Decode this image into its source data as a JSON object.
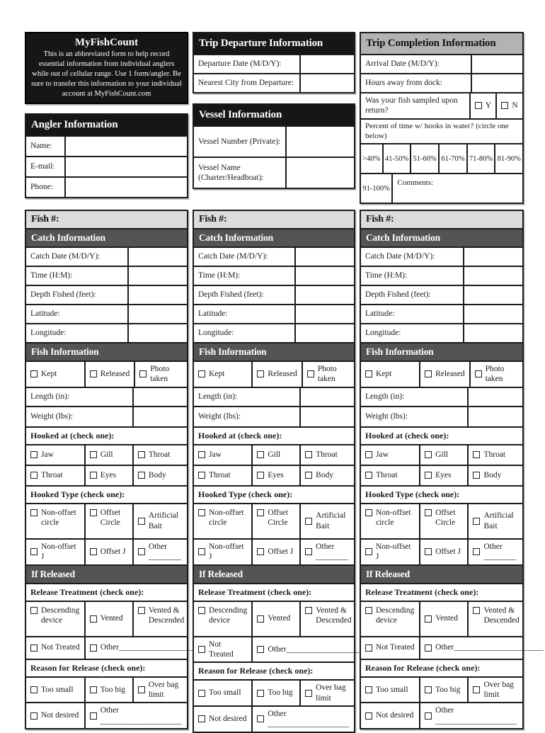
{
  "intro": {
    "title": "MyFishCount",
    "body": "This is an abbreviated form to help record essential information from individual anglers while out of cellular range. Use 1 form/angler. Be sure to transfer this information to your individual account at MyFishCount.com"
  },
  "angler": {
    "title": "Angler Information",
    "rows": [
      "Name:",
      "E-mail:",
      "Phone:"
    ]
  },
  "departure": {
    "title": "Trip Departure Information",
    "rows": [
      "Departure Date (M/D/Y):",
      "Nearest City from Departure:"
    ]
  },
  "vessel": {
    "title": "Vessel Information",
    "rows": [
      "Vessel Number (Private):",
      "Vessel Name (Charter/Headboat):"
    ]
  },
  "completion": {
    "title": "Trip Completion Information",
    "rows": [
      "Arrival Date (M/D/Y):",
      "Hours away from dock:"
    ],
    "sampled_label": "Was your fish sampled upon return?",
    "sampled_options": [
      "Y",
      "N"
    ],
    "percent_label": "Percent of time w/ hooks in water? (circle one below)",
    "percent_options": [
      ">40%",
      "41-50%",
      "51-60%",
      "61-70%",
      "71-80%",
      "81-90%",
      "91-100%"
    ],
    "comments_label": "Comments:"
  },
  "fish": {
    "fish_label": "Fish #:",
    "catch_title": "Catch Information",
    "catch_rows": [
      "Catch Date (M/D/Y):",
      "Time (H:M):",
      "Depth Fished (feet):",
      "Latitude:",
      "Longitude:"
    ],
    "fish_info_title": "Fish Information",
    "status_options": [
      "Kept",
      "Released",
      "Photo taken"
    ],
    "measure_rows": [
      "Length (in):",
      "Weight (lbs):"
    ],
    "hooked_at_title": "Hooked at (check one):",
    "hooked_at_rows": [
      [
        "Jaw",
        "Gill",
        "Throat"
      ],
      [
        "Throat",
        "Eyes",
        "Body"
      ]
    ],
    "hooked_type_title": "Hooked Type (check one):",
    "hooked_type_rows": [
      [
        "Non-offset circle",
        "Offset Circle",
        "Artificial Bait"
      ],
      [
        "Non-offset J",
        "Offset J",
        "Other ________"
      ]
    ],
    "released_title": "If Released",
    "treatment_title": "Release Treatment (check one):",
    "treatment_rows": [
      [
        "Descending device",
        "Vented",
        "Vented & Descended"
      ],
      [
        "Not Treated",
        "Other______________________"
      ]
    ],
    "reason_title": "Reason for Release (check one):",
    "reason_rows": [
      [
        "Too small",
        "Too big",
        "Over bag limit"
      ],
      [
        "Not desired",
        "Other ____________________"
      ]
    ]
  },
  "colors": {
    "header_black": "#161616",
    "header_dark_grey": "#545456",
    "header_silver": "#b3b3b3",
    "fish_header_light": "#dcdcdc",
    "border": "#1b1b1b"
  }
}
